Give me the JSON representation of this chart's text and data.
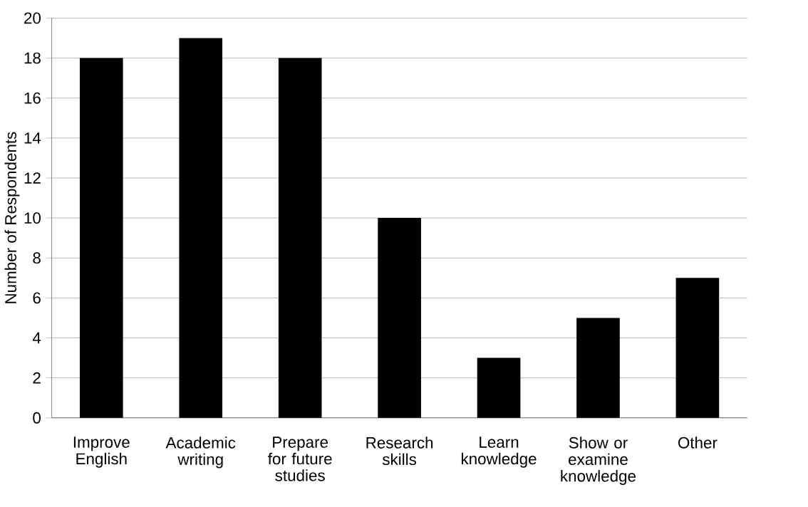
{
  "chart_data": {
    "type": "bar",
    "ylabel": "Number of Respondents",
    "categories": [
      "Improve English",
      "Academic writing",
      "Prepare for future studies",
      "Research skills",
      "Learn knowledge",
      "Show or examine knowledge",
      "Other"
    ],
    "values": [
      18,
      19,
      18,
      10,
      3,
      5,
      7
    ],
    "color": "#000000",
    "ylim": [
      0,
      20
    ],
    "yticks": [
      0,
      2,
      4,
      6,
      8,
      10,
      12,
      14,
      16,
      18,
      20
    ],
    "grid": "y"
  }
}
